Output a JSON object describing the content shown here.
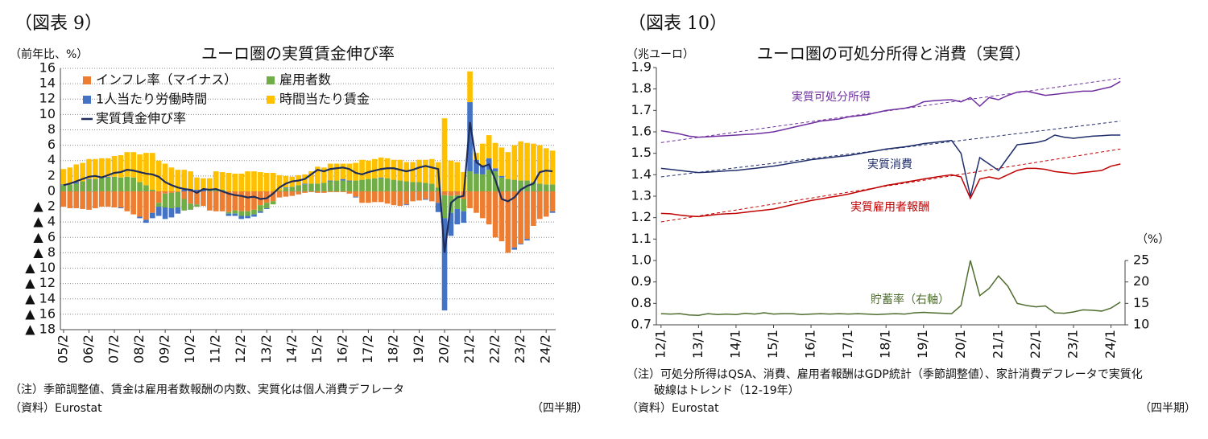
{
  "chart_data": [
    {
      "type": "bar",
      "stacked": true,
      "figure_label": "（図表 9）",
      "title": "ユーロ圏の実質賃金伸び率",
      "y_label": "（前年比、%）",
      "categories": [
        "05/2",
        null,
        null,
        null,
        "06/2",
        null,
        null,
        null,
        "07/2",
        null,
        null,
        null,
        "08/2",
        null,
        null,
        null,
        "09/2",
        null,
        null,
        null,
        "10/2",
        null,
        null,
        null,
        "11/2",
        null,
        null,
        null,
        "12/2",
        null,
        null,
        null,
        "13/2",
        null,
        null,
        null,
        "14/2",
        null,
        null,
        null,
        "15/2",
        null,
        null,
        null,
        "16/2",
        null,
        null,
        null,
        "17/2",
        null,
        null,
        null,
        "18/2",
        null,
        null,
        null,
        "19/2",
        null,
        null,
        null,
        "20/2",
        null,
        null,
        null,
        "21/2",
        null,
        null,
        null,
        "22/2",
        null,
        null,
        null,
        "23/2",
        null,
        null,
        null,
        "24/2",
        null
      ],
      "series": [
        {
          "name": "インフレ率（マイナス）",
          "color": "#ed7d31",
          "values": [
            -2.0,
            -2.2,
            -2.2,
            -2.3,
            -2.4,
            -2.2,
            -2.0,
            -2.0,
            -2.1,
            -2.1,
            -2.6,
            -3.0,
            -3.3,
            -3.7,
            -2.8,
            -1.5,
            -0.3,
            -0.2,
            -0.1,
            -1.0,
            -1.6,
            -1.7,
            -1.9,
            -2.5,
            -2.6,
            -2.6,
            -2.7,
            -2.5,
            -2.6,
            -2.6,
            -2.4,
            -1.8,
            -1.5,
            -1.3,
            -0.8,
            -0.7,
            -0.6,
            -0.4,
            -0.2,
            -0.1,
            -0.2,
            -0.2,
            -0.1,
            -0.1,
            -0.1,
            -0.3,
            -0.7,
            -1.5,
            -1.5,
            -1.4,
            -1.4,
            -1.6,
            -1.8,
            -1.9,
            -1.7,
            -1.3,
            -1.2,
            -1.0,
            -1.3,
            -1.5,
            -0.5,
            -0.6,
            -0.5,
            -1.0,
            -2.2,
            -2.8,
            -3.5,
            -4.3,
            -6.0,
            -6.5,
            -8.0,
            -7.3,
            -6.8,
            -6.2,
            -4.5,
            -3.6,
            -3.3,
            -2.6
          ]
        },
        {
          "name": "雇用者数",
          "color": "#70ad47",
          "values": [
            0.8,
            0.9,
            1.0,
            1.3,
            1.5,
            1.6,
            1.8,
            1.8,
            1.9,
            1.8,
            1.9,
            1.8,
            1.2,
            0.8,
            0.2,
            -0.5,
            -1.8,
            -2.0,
            -2.0,
            -1.5,
            -0.8,
            -0.3,
            0.0,
            0.2,
            0.3,
            0.2,
            -0.2,
            -0.4,
            -0.6,
            -0.6,
            -0.6,
            -0.8,
            -0.7,
            -0.4,
            0.1,
            0.4,
            0.6,
            0.8,
            0.9,
            1.0,
            1.0,
            1.1,
            1.3,
            1.4,
            1.4,
            1.3,
            1.4,
            1.5,
            1.6,
            1.7,
            1.7,
            1.7,
            1.5,
            1.4,
            1.3,
            1.2,
            1.2,
            1.1,
            1.0,
            0.5,
            -3.0,
            -2.2,
            -1.8,
            -1.6,
            2.6,
            2.3,
            2.2,
            2.8,
            2.6,
            1.8,
            1.6,
            1.5,
            1.4,
            1.4,
            1.2,
            1.0,
            0.9,
            0.9
          ]
        },
        {
          "name": "1人当たり労働時間",
          "color": "#4472c4",
          "values": [
            0.1,
            0,
            0.2,
            0,
            0.1,
            0,
            0,
            0.1,
            0,
            -0.1,
            0,
            0,
            -0.2,
            -0.4,
            -0.7,
            -1.2,
            -1.5,
            -1.2,
            -0.8,
            0.2,
            0.3,
            0.2,
            0.2,
            0,
            0,
            0,
            -0.3,
            -0.3,
            -0.4,
            -0.3,
            -0.3,
            -0.2,
            -0.1,
            0,
            0,
            0.1,
            0,
            0,
            0.1,
            0,
            0,
            0,
            0.1,
            0,
            0.2,
            0.1,
            -0.1,
            0,
            0,
            0,
            0.1,
            0,
            0,
            0,
            -0.1,
            0,
            0,
            -0.1,
            0,
            -1.2,
            -12.0,
            -3.0,
            -2.0,
            -1.5,
            9.0,
            1.8,
            1.2,
            1.5,
            0.4,
            0.2,
            0,
            -0.3,
            -0.1,
            -0.2,
            0,
            0,
            0,
            -0.2
          ]
        },
        {
          "name": "時間当たり賃金",
          "color": "#ffc000",
          "values": [
            2.0,
            2.2,
            2.3,
            2.4,
            2.6,
            2.6,
            2.5,
            2.4,
            2.7,
            2.9,
            3.2,
            3.3,
            3.6,
            4.2,
            4.8,
            4.0,
            3.6,
            3.1,
            2.8,
            2.6,
            2.3,
            1.6,
            1.5,
            1.5,
            2.3,
            2.3,
            2.4,
            2.3,
            2.3,
            2.6,
            2.6,
            2.5,
            2.4,
            2.4,
            2.0,
            1.5,
            1.3,
            1.3,
            1.2,
            1.6,
            2.2,
            2.0,
            2.2,
            2.2,
            2.0,
            2.2,
            2.3,
            2.6,
            2.4,
            2.5,
            2.6,
            2.6,
            2.6,
            2.7,
            2.5,
            2.6,
            2.9,
            3.0,
            3.2,
            3.3,
            9.5,
            4.0,
            3.8,
            2.5,
            4.0,
            0.9,
            2.8,
            3.0,
            3.3,
            3.7,
            3.5,
            4.5,
            5.1,
            4.9,
            5.0,
            5.0,
            4.7,
            4.4
          ]
        },
        {
          "name": "実質賃金伸び率",
          "type": "line",
          "color": "#1f2d5a",
          "values": [
            0.8,
            1.0,
            1.3,
            1.6,
            1.9,
            2.0,
            1.8,
            2.1,
            2.4,
            2.5,
            2.8,
            2.7,
            2.5,
            2.3,
            2.2,
            1.9,
            1.2,
            0.8,
            0.5,
            0.3,
            0.2,
            -0.2,
            0.3,
            0.2,
            0.3,
            0.0,
            -0.3,
            -0.5,
            -0.6,
            -0.8,
            -0.7,
            -1.0,
            -0.9,
            -0.3,
            0.5,
            1.0,
            1.3,
            1.4,
            1.6,
            2.2,
            2.8,
            2.6,
            2.9,
            3.0,
            3.1,
            2.9,
            2.4,
            2.2,
            2.5,
            2.7,
            2.9,
            3.0,
            3.0,
            2.8,
            2.6,
            2.8,
            3.1,
            3.3,
            3.1,
            2.9,
            -8.0,
            -1.5,
            -0.8,
            -0.6,
            9.0,
            3.8,
            3.2,
            3.5,
            1.5,
            -1.0,
            -1.3,
            -0.8,
            0.2,
            0.7,
            1.0,
            2.5,
            2.7,
            2.6
          ]
        }
      ],
      "ylim": [
        -18,
        16
      ],
      "yticks": [
        16,
        14,
        12,
        10,
        8,
        6,
        4,
        2,
        0,
        {
          "value": -2,
          "label": "▲ 2"
        },
        {
          "value": -4,
          "label": "▲ 4"
        },
        {
          "value": -6,
          "label": "▲ 6"
        },
        {
          "value": -8,
          "label": "▲ 8"
        },
        {
          "value": -10,
          "label": "▲ 10"
        },
        {
          "value": -12,
          "label": "▲ 12"
        },
        {
          "value": -14,
          "label": "▲ 14"
        },
        {
          "value": -16,
          "label": "▲ 16"
        },
        {
          "value": -18,
          "label": "▲ 18"
        }
      ],
      "grid": true,
      "legend": "top-left",
      "notes": [
        "（注）季節調整値、賃金は雇用者数報酬の内数、実質化は個人消費デフレータ"
      ],
      "source": "（資料）Eurostat",
      "x_unit": "（四半期）"
    },
    {
      "type": "line",
      "figure_label": "（図表 10）",
      "title": "ユーロ圏の可処分所得と消費（実質）",
      "y_label": "（兆ユーロ）",
      "y2_label": "（%）",
      "categories": [
        "12/1",
        null,
        null,
        null,
        "13/1",
        null,
        null,
        null,
        "14/1",
        null,
        null,
        null,
        "15/1",
        null,
        null,
        null,
        "16/1",
        null,
        null,
        null,
        "17/1",
        null,
        null,
        null,
        "18/1",
        null,
        null,
        null,
        "19/1",
        null,
        null,
        null,
        "20/1",
        null,
        null,
        null,
        "21/1",
        null,
        null,
        null,
        "22/1",
        null,
        null,
        null,
        "23/1",
        null,
        null,
        null,
        "24/1",
        null
      ],
      "series": [
        {
          "name": "実質可処分所得",
          "color": "#7030a0",
          "values": [
            1.605,
            1.598,
            1.59,
            1.58,
            1.575,
            1.577,
            1.58,
            1.582,
            1.585,
            1.588,
            1.59,
            1.595,
            1.6,
            1.61,
            1.62,
            1.63,
            1.64,
            1.65,
            1.655,
            1.66,
            1.67,
            1.675,
            1.68,
            1.69,
            1.7,
            1.705,
            1.71,
            1.72,
            1.74,
            1.745,
            1.748,
            1.75,
            1.74,
            1.76,
            1.72,
            1.76,
            1.75,
            1.77,
            1.785,
            1.79,
            1.78,
            1.77,
            1.775,
            1.78,
            1.785,
            1.79,
            1.79,
            1.8,
            1.81,
            1.835
          ]
        },
        {
          "name": "実質消費",
          "color": "#1f2d6b",
          "values": [
            1.43,
            1.425,
            1.42,
            1.415,
            1.41,
            1.412,
            1.415,
            1.418,
            1.42,
            1.425,
            1.43,
            1.435,
            1.44,
            1.447,
            1.455,
            1.462,
            1.47,
            1.475,
            1.48,
            1.485,
            1.49,
            1.497,
            1.505,
            1.512,
            1.52,
            1.525,
            1.53,
            1.537,
            1.545,
            1.55,
            1.555,
            1.56,
            1.5,
            1.3,
            1.48,
            1.45,
            1.42,
            1.48,
            1.54,
            1.545,
            1.55,
            1.56,
            1.585,
            1.575,
            1.57,
            1.575,
            1.58,
            1.582,
            1.585,
            1.585
          ]
        },
        {
          "name": "実質雇用者報酬",
          "color": "#c00000",
          "values": [
            1.22,
            1.218,
            1.212,
            1.207,
            1.205,
            1.21,
            1.215,
            1.218,
            1.22,
            1.225,
            1.23,
            1.235,
            1.24,
            1.25,
            1.26,
            1.27,
            1.28,
            1.287,
            1.295,
            1.302,
            1.31,
            1.32,
            1.33,
            1.34,
            1.35,
            1.357,
            1.365,
            1.372,
            1.38,
            1.387,
            1.394,
            1.4,
            1.39,
            1.29,
            1.38,
            1.39,
            1.38,
            1.4,
            1.42,
            1.43,
            1.43,
            1.425,
            1.415,
            1.41,
            1.405,
            1.41,
            1.415,
            1.42,
            1.44,
            1.45
          ]
        },
        {
          "name": "貯蓄率（右軸）",
          "color": "#4f6d2f",
          "axis": "y2",
          "values": [
            12.6,
            12.5,
            12.6,
            12.3,
            12.2,
            12.6,
            12.4,
            12.5,
            12.4,
            12.7,
            12.5,
            12.8,
            12.5,
            12.6,
            12.6,
            12.4,
            12.5,
            12.6,
            12.5,
            12.6,
            12.5,
            12.6,
            12.5,
            12.4,
            12.5,
            12.6,
            12.5,
            12.8,
            12.9,
            12.8,
            12.7,
            12.6,
            14.5,
            25,
            16.8,
            18.5,
            21.4,
            19,
            15,
            14.5,
            14.2,
            14.4,
            12.8,
            12.7,
            13,
            13.5,
            13.4,
            13.2,
            13.9,
            15.3
          ]
        }
      ],
      "trend_lines": [
        {
          "color": "#7030a0",
          "values": [
            1.55,
            1.85
          ]
        },
        {
          "color": "#1f2d6b",
          "values": [
            1.39,
            1.65
          ]
        },
        {
          "color": "#c00000",
          "values": [
            1.18,
            1.52
          ]
        }
      ],
      "ylim": [
        0.7,
        1.9
      ],
      "yticks": [
        0.7,
        0.8,
        0.9,
        {
          "value": 1,
          "label": "1.0"
        },
        1.1,
        1.2,
        1.3,
        1.4,
        1.5,
        1.6,
        1.7,
        1.8,
        1.9
      ],
      "y2lim": [
        10,
        70
      ],
      "y2ticks": [
        10,
        15,
        20,
        25
      ],
      "grid": false,
      "notes": [
        "（注）可処分所得はQSA、消費、雇用者報酬はGDP統計（季節調整値）、家計消費デフレータで実質化",
        "破線はトレンド（12-19年）"
      ],
      "source": "（資料）Eurostat",
      "x_unit": "（四半期）"
    }
  ]
}
